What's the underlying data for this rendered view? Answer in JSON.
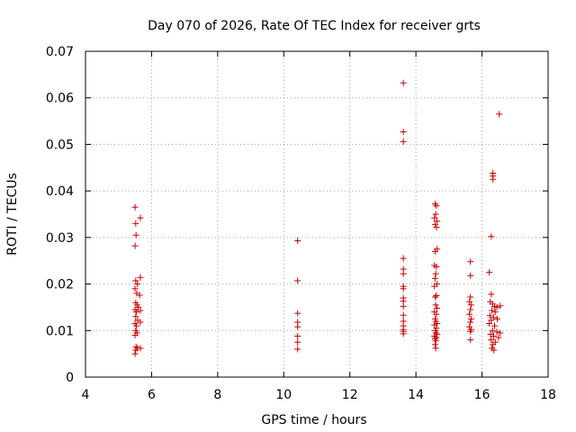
{
  "chart_data": {
    "type": "scatter",
    "title": "Day 070 of 2026, Rate Of TEC Index for receiver grts",
    "xlabel": "GPS time / hours",
    "ylabel": "ROTI / TECUs",
    "xlim": [
      4,
      18
    ],
    "ylim": [
      0,
      0.07
    ],
    "x_ticks": [
      4,
      6,
      8,
      10,
      12,
      14,
      16,
      18
    ],
    "x_tick_labels": [
      "4",
      "6",
      "8",
      "10",
      "12",
      "14",
      "16",
      "18"
    ],
    "y_ticks": [
      0,
      0.01,
      0.02,
      0.03,
      0.04,
      0.05,
      0.06,
      0.07
    ],
    "y_tick_labels": [
      "0",
      "0.01",
      "0.02",
      "0.03",
      "0.04",
      "0.05",
      "0.06",
      "0.07"
    ],
    "grid": true,
    "marker": "+",
    "marker_color": "#cc0000",
    "series": [
      {
        "points": [
          [
            5.5,
            0.0365
          ],
          [
            5.52,
            0.033
          ],
          [
            5.53,
            0.0305
          ],
          [
            5.5,
            0.0282
          ],
          [
            5.66,
            0.0342
          ],
          [
            5.66,
            0.0214
          ],
          [
            5.52,
            0.0207
          ],
          [
            5.57,
            0.02
          ],
          [
            5.5,
            0.019
          ],
          [
            5.55,
            0.018
          ],
          [
            5.64,
            0.0176
          ],
          [
            5.52,
            0.016
          ],
          [
            5.56,
            0.0155
          ],
          [
            5.6,
            0.015
          ],
          [
            5.5,
            0.0145
          ],
          [
            5.54,
            0.014
          ],
          [
            5.66,
            0.0143
          ],
          [
            5.52,
            0.013
          ],
          [
            5.58,
            0.0122
          ],
          [
            5.66,
            0.0118
          ],
          [
            5.5,
            0.0115
          ],
          [
            5.54,
            0.011
          ],
          [
            5.52,
            0.01
          ],
          [
            5.56,
            0.0095
          ],
          [
            5.5,
            0.009
          ],
          [
            5.53,
            0.0065
          ],
          [
            5.57,
            0.0062
          ],
          [
            5.66,
            0.0062
          ],
          [
            5.52,
            0.0058
          ],
          [
            5.5,
            0.005
          ],
          [
            10.42,
            0.0293
          ],
          [
            10.42,
            0.0207
          ],
          [
            10.42,
            0.0137
          ],
          [
            10.42,
            0.0118
          ],
          [
            10.42,
            0.0108
          ],
          [
            10.42,
            0.0088
          ],
          [
            10.42,
            0.0075
          ],
          [
            10.42,
            0.006
          ],
          [
            13.62,
            0.0632
          ],
          [
            13.62,
            0.0527
          ],
          [
            13.62,
            0.0506
          ],
          [
            13.62,
            0.0255
          ],
          [
            13.62,
            0.0232
          ],
          [
            13.62,
            0.0222
          ],
          [
            13.62,
            0.0195
          ],
          [
            13.62,
            0.019
          ],
          [
            13.62,
            0.017
          ],
          [
            13.62,
            0.0163
          ],
          [
            13.62,
            0.0152
          ],
          [
            13.62,
            0.0133
          ],
          [
            13.62,
            0.012
          ],
          [
            13.62,
            0.011
          ],
          [
            13.62,
            0.0102
          ],
          [
            13.62,
            0.0098
          ],
          [
            13.62,
            0.0093
          ],
          [
            14.58,
            0.0372
          ],
          [
            14.62,
            0.0368
          ],
          [
            14.6,
            0.035
          ],
          [
            14.56,
            0.0342
          ],
          [
            14.64,
            0.0335
          ],
          [
            14.58,
            0.0328
          ],
          [
            14.62,
            0.0322
          ],
          [
            14.64,
            0.0275
          ],
          [
            14.58,
            0.027
          ],
          [
            14.56,
            0.024
          ],
          [
            14.62,
            0.0237
          ],
          [
            14.6,
            0.0222
          ],
          [
            14.58,
            0.0212
          ],
          [
            14.64,
            0.02
          ],
          [
            14.56,
            0.0195
          ],
          [
            14.62,
            0.0175
          ],
          [
            14.58,
            0.0172
          ],
          [
            14.6,
            0.0155
          ],
          [
            14.64,
            0.0148
          ],
          [
            14.56,
            0.014
          ],
          [
            14.62,
            0.0135
          ],
          [
            14.58,
            0.0125
          ],
          [
            14.6,
            0.012
          ],
          [
            14.64,
            0.0115
          ],
          [
            14.56,
            0.0112
          ],
          [
            14.62,
            0.0105
          ],
          [
            14.58,
            0.01
          ],
          [
            14.6,
            0.0095
          ],
          [
            14.64,
            0.0092
          ],
          [
            14.56,
            0.0088
          ],
          [
            14.62,
            0.0085
          ],
          [
            14.58,
            0.0082
          ],
          [
            14.6,
            0.0078
          ],
          [
            14.58,
            0.007
          ],
          [
            14.6,
            0.0062
          ],
          [
            15.65,
            0.0248
          ],
          [
            15.65,
            0.0218
          ],
          [
            15.65,
            0.0172
          ],
          [
            15.62,
            0.0162
          ],
          [
            15.67,
            0.0155
          ],
          [
            15.65,
            0.0145
          ],
          [
            15.62,
            0.0135
          ],
          [
            15.67,
            0.0125
          ],
          [
            15.65,
            0.0118
          ],
          [
            15.62,
            0.0108
          ],
          [
            15.67,
            0.0102
          ],
          [
            15.65,
            0.0098
          ],
          [
            15.65,
            0.008
          ],
          [
            16.52,
            0.0565
          ],
          [
            16.33,
            0.0438
          ],
          [
            16.33,
            0.0432
          ],
          [
            16.33,
            0.0425
          ],
          [
            16.28,
            0.0302
          ],
          [
            16.22,
            0.0225
          ],
          [
            16.28,
            0.0178
          ],
          [
            16.25,
            0.0162
          ],
          [
            16.32,
            0.0157
          ],
          [
            16.38,
            0.0152
          ],
          [
            16.45,
            0.015
          ],
          [
            16.55,
            0.0153
          ],
          [
            16.3,
            0.0143
          ],
          [
            16.4,
            0.014
          ],
          [
            16.24,
            0.0132
          ],
          [
            16.35,
            0.0128
          ],
          [
            16.46,
            0.0125
          ],
          [
            16.28,
            0.0122
          ],
          [
            16.22,
            0.0115
          ],
          [
            16.38,
            0.011
          ],
          [
            16.32,
            0.01
          ],
          [
            16.45,
            0.0097
          ],
          [
            16.55,
            0.0095
          ],
          [
            16.26,
            0.0092
          ],
          [
            16.35,
            0.0088
          ],
          [
            16.5,
            0.0085
          ],
          [
            16.28,
            0.008
          ],
          [
            16.4,
            0.0075
          ],
          [
            16.33,
            0.007
          ],
          [
            16.3,
            0.0062
          ],
          [
            16.36,
            0.0058
          ]
        ]
      }
    ]
  }
}
